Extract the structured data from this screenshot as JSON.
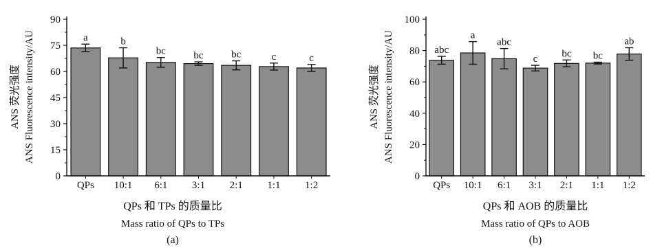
{
  "colors": {
    "bar": "#8c8c8c",
    "stroke": "#111111",
    "background": "#ffffff"
  },
  "chart_data": [
    {
      "type": "bar",
      "panel_label": "(a)",
      "ylabel_cn": "ANS 荧光强度",
      "ylabel_en": "ANS Fluorescence intensity/AU",
      "xlabel_cn": "QPs 和 TPs 的质量比",
      "xlabel_en": "Mass ratio of QPs to TPs",
      "categories": [
        "QPs",
        "10:1",
        "6:1",
        "3:1",
        "2:1",
        "1:1",
        "1:2"
      ],
      "values": [
        73.5,
        67.8,
        65.2,
        64.5,
        63.5,
        62.8,
        62.0
      ],
      "errors": [
        2.2,
        5.8,
        2.8,
        1.0,
        2.6,
        2.0,
        2.0
      ],
      "significance": [
        "a",
        "b",
        "bc",
        "bc",
        "bc",
        "c",
        "c"
      ],
      "ylim": [
        0,
        90
      ],
      "yticks": [
        0,
        15,
        30,
        45,
        60,
        75,
        90
      ],
      "grid": false
    },
    {
      "type": "bar",
      "panel_label": "(b)",
      "ylabel_cn": "ANS 荧光强度",
      "ylabel_en": "ANS Fluorescence intensity/AU",
      "xlabel_cn": "QPs 和 AOB 的质量比",
      "xlabel_en": "Mass ratio of QPs to AOB",
      "categories": [
        "QPs",
        "10:1",
        "6:1",
        "3:1",
        "2:1",
        "1:1",
        "1:2"
      ],
      "values": [
        73.8,
        78.5,
        74.8,
        68.8,
        71.8,
        72.0,
        77.8
      ],
      "errors": [
        2.5,
        7.2,
        6.5,
        1.8,
        2.2,
        0.6,
        4.0
      ],
      "significance": [
        "abc",
        "a",
        "abc",
        "c",
        "bc",
        "bc",
        "ab"
      ],
      "ylim": [
        0,
        100
      ],
      "yticks": [
        0,
        20,
        40,
        60,
        80,
        100
      ],
      "grid": false
    }
  ]
}
